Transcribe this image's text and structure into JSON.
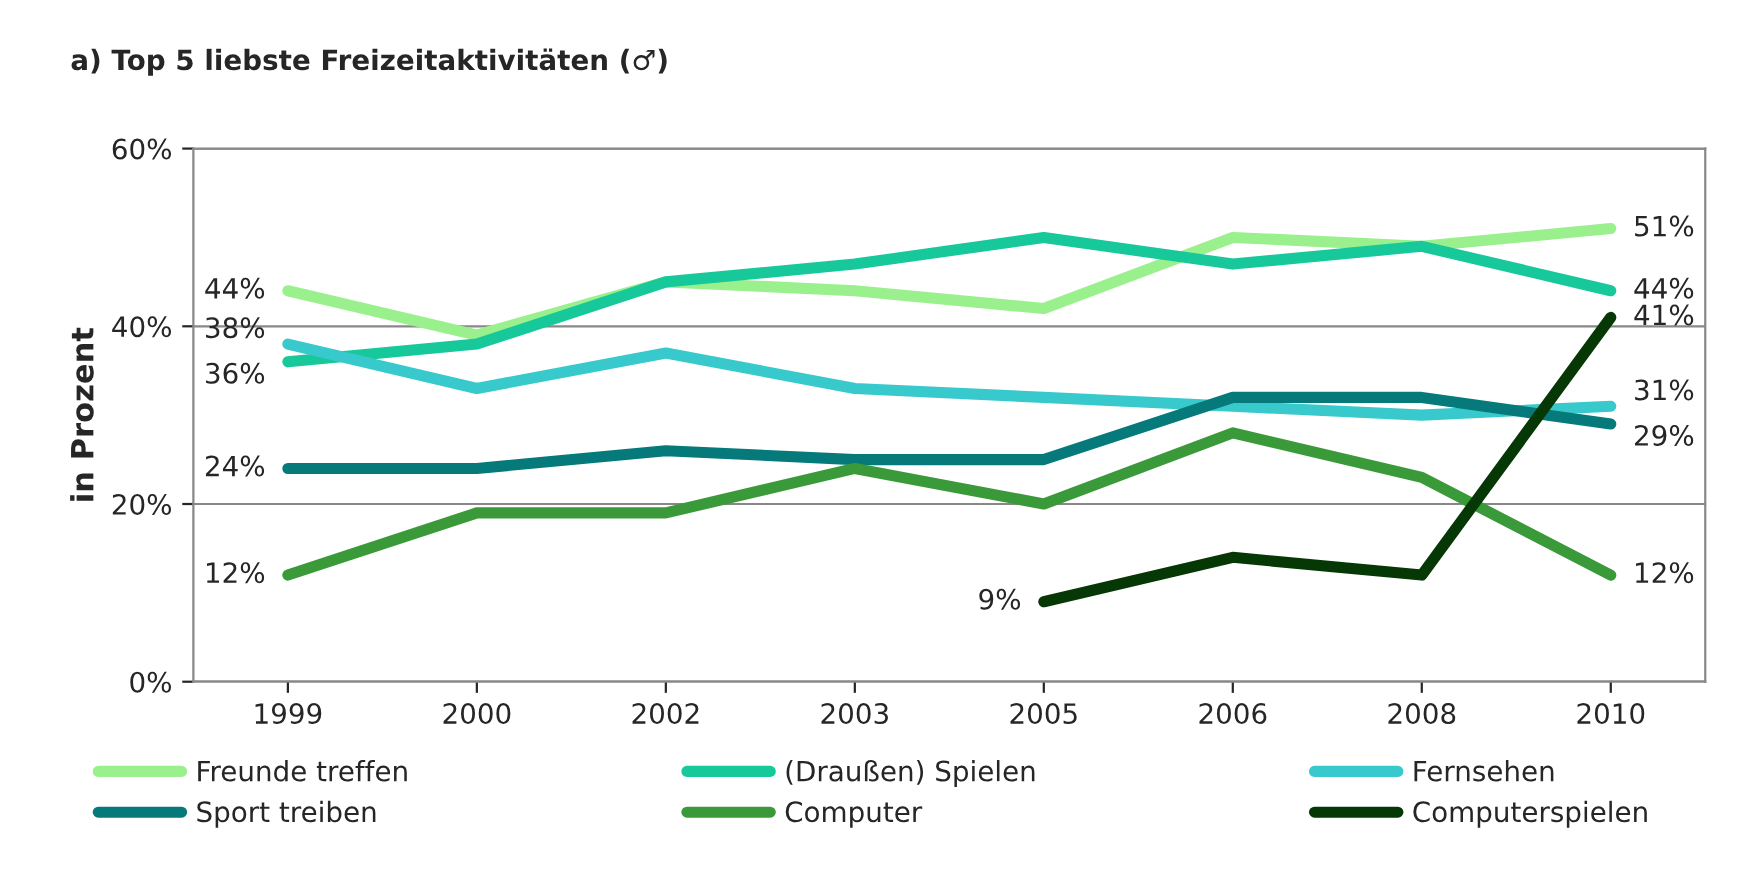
{
  "chart_data": {
    "type": "line",
    "title": "a) Top 5 liebste Freizeitaktivitäten (♂)",
    "ylabel": "in Prozent",
    "categories": [
      "1999",
      "2000",
      "2002",
      "2003",
      "2005",
      "2006",
      "2008",
      "2010"
    ],
    "series": [
      {
        "name": "Freunde treffen",
        "color": "#99f08c",
        "values": [
          44,
          39,
          45,
          44,
          42,
          50,
          49,
          51
        ],
        "value_labels": [
          "44%",
          null,
          null,
          null,
          null,
          null,
          null,
          "51%"
        ]
      },
      {
        "name": "(Draußen) Spielen",
        "color": "#17c99a",
        "values": [
          36,
          38,
          45,
          47,
          50,
          47,
          49,
          44
        ],
        "value_labels": [
          "36%",
          null,
          null,
          null,
          null,
          null,
          null,
          "44%"
        ]
      },
      {
        "name": "Fernsehen",
        "color": "#38c9cc",
        "values": [
          38,
          33,
          37,
          33,
          32,
          31,
          30,
          31
        ],
        "value_labels": [
          "38%",
          null,
          null,
          null,
          null,
          null,
          null,
          "31%"
        ]
      },
      {
        "name": "Sport treiben",
        "color": "#067a7a",
        "values": [
          24,
          24,
          26,
          25,
          25,
          32,
          32,
          29
        ],
        "value_labels": [
          "24%",
          null,
          null,
          null,
          null,
          null,
          null,
          "29%"
        ]
      },
      {
        "name": "Computer",
        "color": "#3a9a3a",
        "values": [
          12,
          19,
          19,
          24,
          20,
          28,
          23,
          12
        ],
        "value_labels": [
          "12%",
          null,
          null,
          null,
          null,
          null,
          null,
          "12%"
        ]
      },
      {
        "name": "Computerspielen",
        "color": "#063806",
        "values": [
          null,
          null,
          null,
          null,
          9,
          14,
          12,
          41
        ],
        "value_labels": [
          null,
          null,
          null,
          null,
          "9%",
          null,
          null,
          "41%"
        ]
      }
    ],
    "ylim": [
      0,
      60
    ],
    "yticks": [
      {
        "value": 0,
        "label": "0%"
      },
      {
        "value": 20,
        "label": "20%"
      },
      {
        "value": 40,
        "label": "40%"
      },
      {
        "value": 60,
        "label": "60%"
      }
    ],
    "grid": "y",
    "legend": "bottom",
    "marker": "none",
    "line_style": "solid"
  }
}
